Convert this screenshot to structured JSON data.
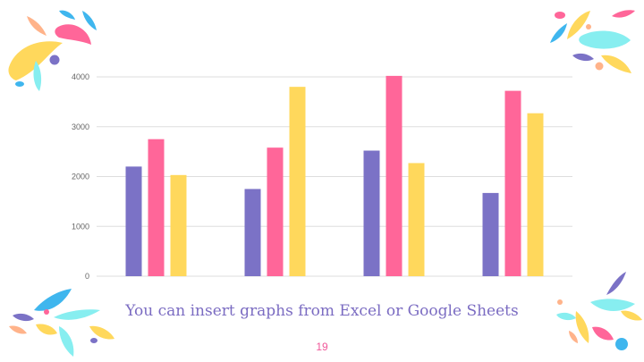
{
  "chart_data": {
    "type": "bar",
    "categories": [
      "",
      "",
      "",
      ""
    ],
    "series": [
      {
        "values": [
          2200,
          1750,
          2520,
          1670
        ],
        "color": "#7b72c6"
      },
      {
        "values": [
          2750,
          2580,
          4020,
          3720
        ],
        "color": "#ff6699"
      },
      {
        "values": [
          2030,
          3800,
          2270,
          3270
        ],
        "color": "#ffd85c"
      }
    ],
    "title": "",
    "xlabel": "",
    "ylabel": "",
    "ylim": [
      0,
      4000
    ],
    "yticks": [
      "0",
      "1000",
      "2000",
      "3000",
      "4000"
    ],
    "grid": true,
    "legend": "none"
  },
  "caption": "You can insert graphs from Excel or Google Sheets",
  "page_number": "19",
  "colors": {
    "purple": "#7b72c6",
    "pink": "#ff6699",
    "yellow": "#ffd85c",
    "cyan": "#87eef0",
    "blue": "#3fb6ee",
    "peach": "#ffb38a",
    "caption": "#7b6cc2",
    "page_number": "#f0589a"
  }
}
